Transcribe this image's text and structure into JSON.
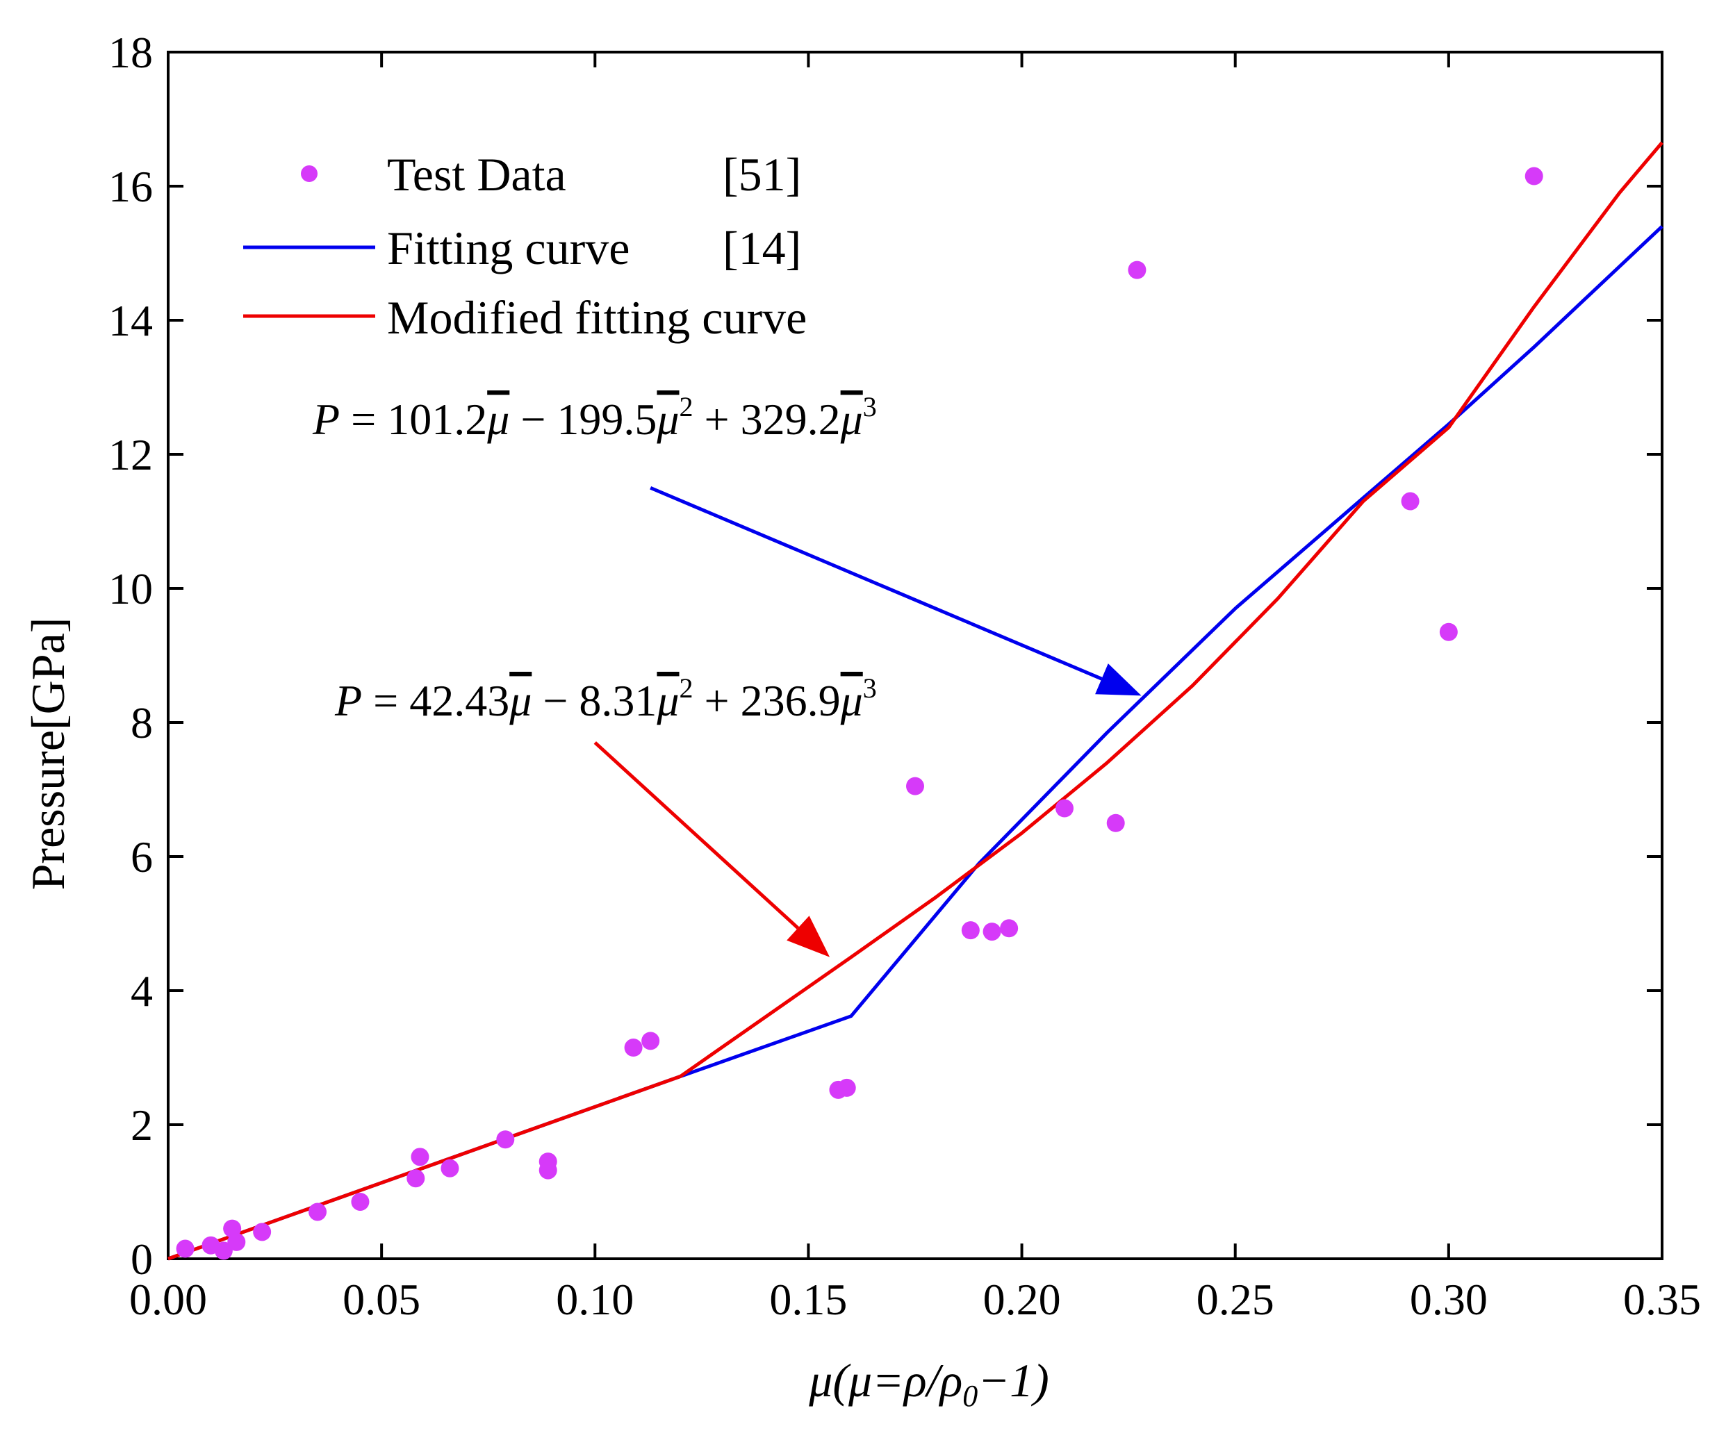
{
  "chart_data": {
    "type": "scatter",
    "xlabel": {
      "sym": "μ",
      "open": "(",
      "sym2": "μ",
      "eq": "=ρ/ρ",
      "sub": "0",
      "tail": "−1)"
    },
    "ylabel": "Pressure[GPa]",
    "xlim": [
      0,
      0.35
    ],
    "ylim": [
      0,
      18
    ],
    "xticks": [
      0,
      0.05,
      0.1,
      0.15,
      0.2,
      0.25,
      0.3,
      0.35
    ],
    "xtick_labels": [
      "0.00",
      "0.05",
      "0.10",
      "0.15",
      "0.20",
      "0.25",
      "0.30",
      "0.35"
    ],
    "yticks": [
      0,
      2,
      4,
      6,
      8,
      10,
      12,
      14,
      16,
      18
    ],
    "ytick_labels": [
      "0",
      "2",
      "4",
      "6",
      "8",
      "10",
      "12",
      "14",
      "16",
      "18"
    ],
    "grid": false,
    "legend_position": "top-left",
    "legend": [
      {
        "label": "Test Data",
        "ref": "[51]",
        "kind": "marker",
        "color": "#D63AF9"
      },
      {
        "label": "Fitting curve",
        "ref": "[14]",
        "kind": "line",
        "color": "#0000EE"
      },
      {
        "label": "Modified fitting curve",
        "ref": "",
        "kind": "line",
        "color": "#EE0000"
      }
    ],
    "series": [
      {
        "name": "Test Data",
        "type": "scatter",
        "color": "#D63AF9",
        "points": [
          [
            0.004,
            0.15
          ],
          [
            0.01,
            0.2
          ],
          [
            0.013,
            0.12
          ],
          [
            0.015,
            0.45
          ],
          [
            0.016,
            0.25
          ],
          [
            0.022,
            0.4
          ],
          [
            0.035,
            0.7
          ],
          [
            0.045,
            0.85
          ],
          [
            0.058,
            1.2
          ],
          [
            0.059,
            1.52
          ],
          [
            0.066,
            1.35
          ],
          [
            0.079,
            1.78
          ],
          [
            0.089,
            1.45
          ],
          [
            0.089,
            1.32
          ],
          [
            0.109,
            3.15
          ],
          [
            0.113,
            3.25
          ],
          [
            0.157,
            2.52
          ],
          [
            0.159,
            2.55
          ],
          [
            0.175,
            7.05
          ],
          [
            0.188,
            4.9
          ],
          [
            0.193,
            4.88
          ],
          [
            0.197,
            4.93
          ],
          [
            0.21,
            6.72
          ],
          [
            0.222,
            6.5
          ],
          [
            0.227,
            14.75
          ],
          [
            0.291,
            11.3
          ],
          [
            0.3,
            9.35
          ],
          [
            0.32,
            16.15
          ]
        ]
      },
      {
        "name": "Fitting curve",
        "type": "line",
        "color": "#0000EE",
        "points": [
          [
            0,
            0
          ],
          [
            0.12,
            2.72
          ],
          [
            0.16,
            3.62
          ],
          [
            0.19,
            5.9
          ],
          [
            0.22,
            7.85
          ],
          [
            0.25,
            9.7
          ],
          [
            0.28,
            11.35
          ],
          [
            0.3,
            12.45
          ],
          [
            0.32,
            13.6
          ],
          [
            0.35,
            15.4
          ]
        ]
      },
      {
        "name": "Modified fitting curve",
        "type": "line",
        "color": "#EE0000",
        "points": [
          [
            0,
            0
          ],
          [
            0.12,
            2.72
          ],
          [
            0.16,
            4.5
          ],
          [
            0.18,
            5.4
          ],
          [
            0.2,
            6.35
          ],
          [
            0.22,
            7.4
          ],
          [
            0.24,
            8.55
          ],
          [
            0.26,
            9.85
          ],
          [
            0.28,
            11.3
          ],
          [
            0.3,
            12.4
          ],
          [
            0.32,
            14.2
          ],
          [
            0.34,
            15.9
          ],
          [
            0.35,
            16.65
          ]
        ]
      }
    ],
    "annotations": [
      {
        "id": "eq-blue",
        "color": "#0000EE",
        "equation": {
          "lhs": "P",
          "c1": "101.2",
          "c2": "199.5",
          "c3": "329.2",
          "var": "μ",
          "p2": "2",
          "p3": "3"
        },
        "arrow_from": [
          0.113,
          11.5
        ],
        "arrow_to": [
          0.228,
          8.4
        ]
      },
      {
        "id": "eq-red",
        "color": "#EE0000",
        "equation": {
          "lhs": "P",
          "c1": "42.43",
          "c2": "8.31",
          "c3": "236.9",
          "var": "μ",
          "p2": "2",
          "p3": "3"
        },
        "arrow_from": [
          0.1,
          7.7
        ],
        "arrow_to": [
          0.155,
          4.5
        ]
      }
    ]
  }
}
